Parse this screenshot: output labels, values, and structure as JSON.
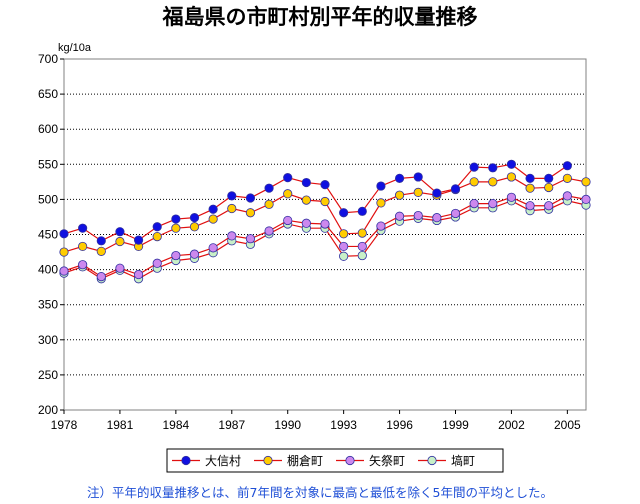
{
  "chart_data": {
    "type": "line",
    "title": "福島県の市町村別平年的収量推移",
    "ylabel": "kg/10a",
    "ylim": [
      200,
      700
    ],
    "yticks": [
      200,
      250,
      300,
      350,
      400,
      450,
      500,
      550,
      600,
      650,
      700
    ],
    "xlim": [
      1978,
      2006
    ],
    "xticks": [
      1978,
      1981,
      1984,
      1987,
      1990,
      1993,
      1996,
      1999,
      2002,
      2005
    ],
    "grid": "horizontal-dotted",
    "x": [
      1978,
      1979,
      1980,
      1981,
      1982,
      1983,
      1984,
      1985,
      1986,
      1987,
      1988,
      1989,
      1990,
      1991,
      1992,
      1993,
      1994,
      1995,
      1996,
      1997,
      1998,
      1999,
      2000,
      2001,
      2002,
      2003,
      2004,
      2005,
      2006
    ],
    "series": [
      {
        "name": "大信村",
        "color": "#1010e0",
        "values": [
          451,
          459,
          441,
          454,
          442,
          461,
          472,
          474,
          486,
          505,
          502,
          516,
          531,
          524,
          521,
          481,
          483,
          519,
          530,
          532,
          509,
          515,
          546,
          545,
          550,
          530,
          530,
          548,
          null
        ]
      },
      {
        "name": "棚倉町",
        "color": "#ffcc00",
        "values": [
          425,
          433,
          426,
          440,
          433,
          447,
          459,
          461,
          472,
          487,
          481,
          493,
          508,
          499,
          497,
          451,
          452,
          495,
          506,
          510,
          506,
          514,
          525,
          525,
          532,
          516,
          517,
          530,
          525
        ]
      },
      {
        "name": "矢祭町",
        "color": "#cc88ee",
        "values": [
          398,
          407,
          390,
          402,
          393,
          409,
          420,
          422,
          431,
          448,
          444,
          455,
          470,
          466,
          465,
          433,
          433,
          462,
          476,
          477,
          474,
          480,
          494,
          494,
          503,
          491,
          491,
          505,
          500
        ]
      },
      {
        "name": "塙町",
        "color": "#c8f0c8",
        "values": [
          395,
          404,
          387,
          399,
          387,
          402,
          413,
          416,
          424,
          441,
          436,
          451,
          465,
          459,
          459,
          419,
          420,
          456,
          469,
          473,
          470,
          475,
          488,
          488,
          498,
          484,
          486,
          498,
          492
        ]
      }
    ]
  },
  "note": "注）平年的収量推移とは、前7年間を対象に最高と最低を除く5年間の平均とした。"
}
